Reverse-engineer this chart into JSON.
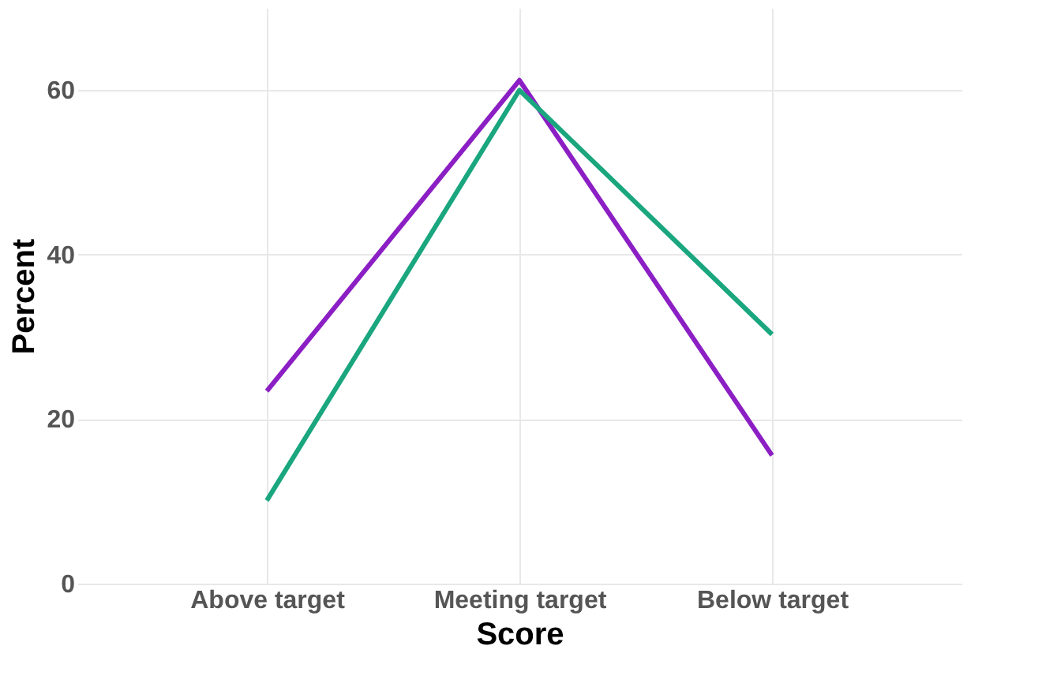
{
  "chart_data": {
    "type": "line",
    "xlabel": "Score",
    "ylabel": "Percent",
    "categories": [
      "Above target",
      "Meeting target",
      "Below target"
    ],
    "series": [
      {
        "color": "#8b1fc4",
        "values": [
          23.4,
          61.2,
          15.6
        ]
      },
      {
        "color": "#1aa67e",
        "values": [
          10.1,
          60,
          30.3
        ]
      }
    ],
    "ylim": [
      0,
      70
    ],
    "yticks": [
      0,
      20,
      40,
      60
    ],
    "grid": true,
    "legend": false
  }
}
